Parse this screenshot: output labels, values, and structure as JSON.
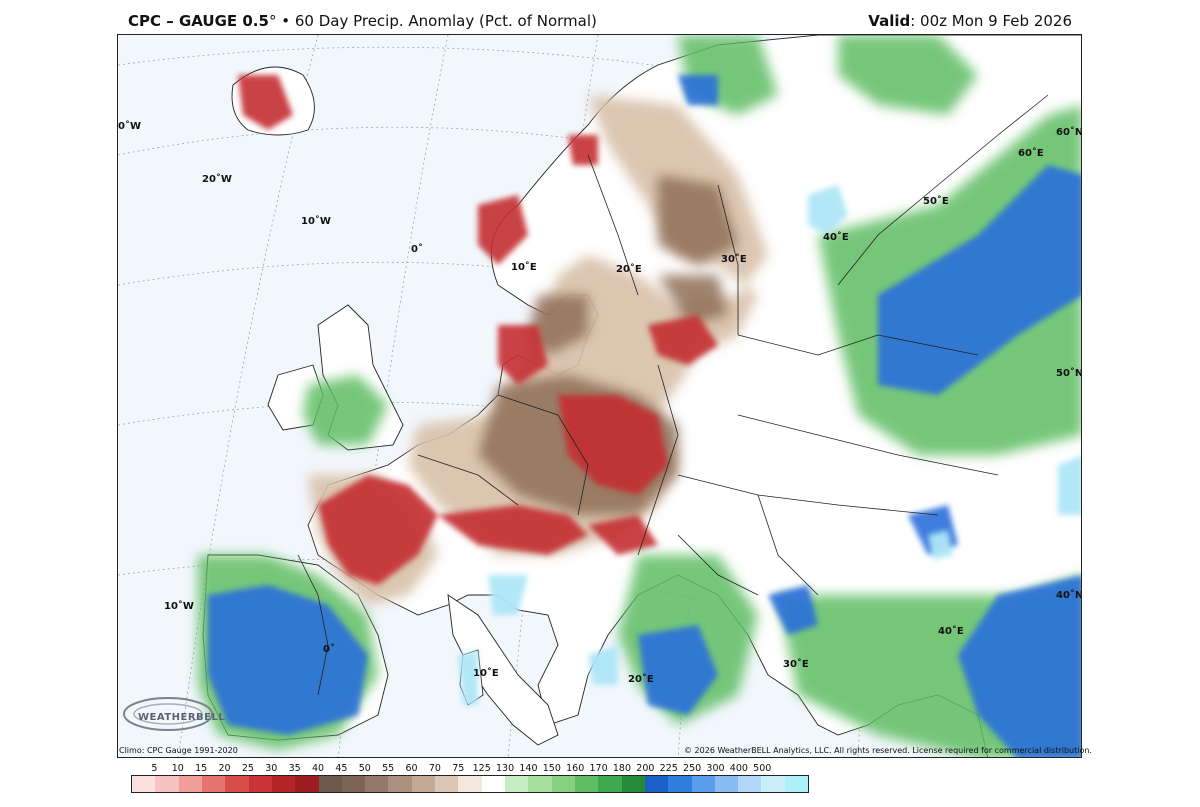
{
  "header": {
    "product": "CPC – GAUGE 0.5",
    "degree": "°",
    "bullet": " • ",
    "description": "60 Day Precip. Anomlay (Pct. of Normal)",
    "valid_label": "Valid",
    "valid_value": ": 00z Mon 9 Feb 2026"
  },
  "footer": {
    "climo": "Climo: CPC Gauge 1991-2020",
    "copyright": "© 2026 WeatherBELL Analytics, LLC. All rights reserved. License required for commercial distribution.",
    "logo_text": "WEATHERBELL"
  },
  "map": {
    "region": "Europe",
    "graticule_labels": [
      "0˚W",
      "20˚W",
      "10˚W",
      "0˚",
      "10˚E",
      "20˚E",
      "30˚E",
      "40˚E",
      "50˚E",
      "60˚E",
      "60˚N",
      "50˚N",
      "40˚N",
      "10˚W",
      "0˚",
      "10˚E",
      "20˚E",
      "30˚E",
      "40˚E"
    ],
    "colors": {
      "ocean": "#f2f7fc",
      "land": "#ffffff",
      "dry_severe": "#c0282d",
      "dry_brown": "#8c6a55",
      "dry_tan": "#c9a88c",
      "wet_green": "#3fae58",
      "wet_lightgreen": "#8fd08c",
      "wet_blue": "#1f67d6",
      "wet_lightblue": "#7fb4ee",
      "wet_cyan": "#aee6f7"
    }
  },
  "legend": {
    "labels": [
      "5",
      "10",
      "15",
      "20",
      "25",
      "30",
      "35",
      "40",
      "45",
      "50",
      "55",
      "60",
      "70",
      "75",
      "125",
      "130",
      "140",
      "150",
      "160",
      "170",
      "180",
      "200",
      "225",
      "250",
      "300",
      "400",
      "500"
    ],
    "colors": [
      "#fbe0df",
      "#f7c2c0",
      "#f09e9c",
      "#e57471",
      "#d94c4a",
      "#c93236",
      "#b4252a",
      "#9c1c22",
      "#6e5a4b",
      "#7d6553",
      "#94796a",
      "#ab8f7f",
      "#c4a994",
      "#dcc6b5",
      "#f3e7dd",
      "#ffffff",
      "#c7ebc2",
      "#a6dea0",
      "#84cf80",
      "#5fbd63",
      "#40a94f",
      "#268a3b",
      "#1c5fc8",
      "#2f7ee0",
      "#5a9eea",
      "#86bdf2",
      "#b2d6f6",
      "#c8eef8",
      "#aef0fa"
    ]
  }
}
